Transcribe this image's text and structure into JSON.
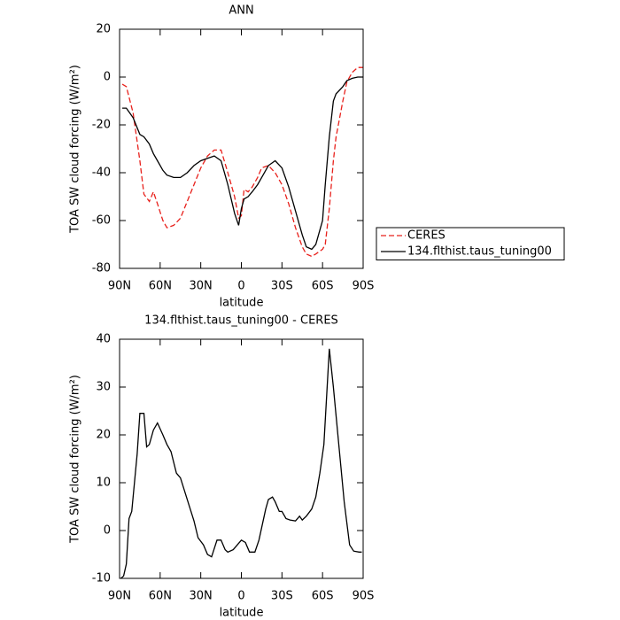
{
  "chart_data": [
    {
      "type": "line",
      "title": "ANN",
      "x_label": "latitude",
      "y_label": "TOA SW cloud forcing (W/m²)",
      "x": [
        88,
        85,
        80,
        75,
        72,
        68,
        65,
        62,
        58,
        55,
        50,
        45,
        40,
        35,
        30,
        25,
        20,
        15,
        10,
        5,
        2,
        0,
        -2,
        -5,
        -8,
        -12,
        -15,
        -20,
        -25,
        -30,
        -35,
        -40,
        -45,
        -48,
        -52,
        -55,
        -60,
        -62,
        -65,
        -68,
        -70,
        -75,
        -78,
        -82,
        -86,
        -90
      ],
      "series": [
        {
          "name": "CERES",
          "color": "#e8211c",
          "line_style": "dashed",
          "values": [
            -3,
            -4,
            -15,
            -35,
            -49,
            -52,
            -48,
            -53,
            -60,
            -63,
            -62,
            -59,
            -52,
            -45,
            -38,
            -33,
            -30.5,
            -30.5,
            -40,
            -50,
            -59,
            -58,
            -47,
            -48,
            -46,
            -42,
            -38,
            -37,
            -40,
            -45,
            -53,
            -63,
            -71,
            -74,
            -75,
            -74,
            -72,
            -70,
            -55,
            -35,
            -25,
            -10,
            -2,
            2,
            4,
            4
          ]
        },
        {
          "name": "134.flthist.taus_tuning00",
          "color": "#000000",
          "line_style": "solid",
          "values": [
            -13,
            -13,
            -17,
            -24,
            -25,
            -28,
            -32,
            -35,
            -39,
            -41,
            -42,
            -42,
            -40,
            -37,
            -35,
            -34,
            -33,
            -35,
            -45,
            -57,
            -62,
            -55,
            -51,
            -50,
            -48,
            -45,
            -42,
            -37,
            -35,
            -38,
            -46,
            -56,
            -66,
            -71,
            -72,
            -70,
            -60,
            -45,
            -25,
            -10,
            -7,
            -4,
            -1.5,
            -0.5,
            0,
            0
          ]
        }
      ],
      "xlim": [
        90,
        -90
      ],
      "ylim": [
        -80,
        20
      ],
      "xticks": [
        {
          "value": 90,
          "label": "90N"
        },
        {
          "value": 60,
          "label": "60N"
        },
        {
          "value": 30,
          "label": "30N"
        },
        0,
        {
          "value": -30,
          "label": "30S"
        },
        {
          "value": -60,
          "label": "60S"
        },
        {
          "value": -90,
          "label": "90S"
        }
      ],
      "yticks": [
        -80,
        -60,
        -40,
        -20,
        0,
        20
      ],
      "legend": "right"
    },
    {
      "type": "line",
      "title": "134.flthist.taus_tuning00 - CERES",
      "x_label": "latitude",
      "y_label": "TOA SW cloud forcing (W/m²)",
      "x": [
        89,
        87,
        85,
        83,
        81,
        77,
        75,
        72,
        70,
        68,
        65,
        62,
        58,
        55,
        52,
        48,
        45,
        40,
        35,
        32,
        28,
        25,
        22,
        18,
        15,
        12,
        10,
        6,
        3,
        0,
        -3,
        -6,
        -10,
        -13,
        -18,
        -20,
        -23,
        -25,
        -28,
        -30,
        -33,
        -36,
        -40,
        -43,
        -45,
        -48,
        -52,
        -55,
        -58,
        -61,
        -65,
        -68,
        -72,
        -76,
        -80,
        -83,
        -87,
        -89
      ],
      "values": [
        -10,
        -9.5,
        -7,
        2.5,
        4,
        16,
        24.5,
        24.5,
        17.5,
        18,
        21,
        22.5,
        20,
        18,
        16.5,
        12,
        11,
        6.5,
        2,
        -1.5,
        -3,
        -5,
        -5.5,
        -2,
        -2,
        -4,
        -4.5,
        -4,
        -3,
        -2,
        -2.5,
        -4.5,
        -4.5,
        -2,
        4.5,
        6.5,
        7,
        6,
        4,
        4,
        2.5,
        2.2,
        2,
        3,
        2.2,
        3,
        4.5,
        7,
        12,
        18,
        38,
        30,
        18,
        6,
        -3,
        -4.3,
        -4.5,
        -4.5
      ],
      "color": "#000000",
      "xlim": [
        90,
        -90
      ],
      "ylim": [
        -10,
        40
      ],
      "xticks": [
        {
          "value": 90,
          "label": "90N"
        },
        {
          "value": 60,
          "label": "60N"
        },
        {
          "value": 30,
          "label": "30N"
        },
        0,
        {
          "value": -30,
          "label": "30S"
        },
        {
          "value": -60,
          "label": "60S"
        },
        {
          "value": -90,
          "label": "90S"
        }
      ],
      "yticks": [
        -10,
        0,
        10,
        20,
        30,
        40
      ]
    }
  ]
}
